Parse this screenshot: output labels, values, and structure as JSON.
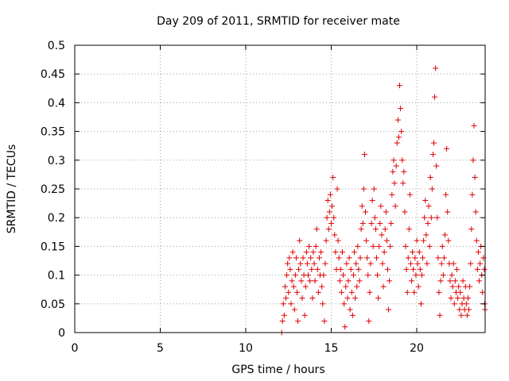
{
  "chart_data": {
    "type": "scatter",
    "title": "Day 209 of 2011, SRMTID for receiver mate",
    "xlabel": "GPS time / hours",
    "ylabel": "SRMTID / TECUs",
    "xlim": [
      0,
      24
    ],
    "ylim": [
      0,
      0.5
    ],
    "x_ticks": [
      0,
      5,
      10,
      15,
      20
    ],
    "x_tick_labels": [
      "0",
      "5",
      "10",
      "15",
      "20"
    ],
    "y_ticks": [
      0,
      0.05,
      0.1,
      0.15,
      0.2,
      0.25,
      0.3,
      0.35,
      0.4,
      0.45,
      0.5
    ],
    "y_tick_labels": [
      "0",
      "0.05",
      "0.1",
      "0.15",
      "0.2",
      "0.25",
      "0.3",
      "0.35",
      "0.4",
      "0.45",
      "0.5"
    ],
    "grid": true,
    "marker": "+",
    "marker_color": "#e00000",
    "series": [
      {
        "name": "SRMTID",
        "points": [
          [
            12.1,
            0.0
          ],
          [
            12.15,
            0.02
          ],
          [
            12.2,
            0.05
          ],
          [
            12.25,
            0.03
          ],
          [
            12.3,
            0.08
          ],
          [
            12.35,
            0.06
          ],
          [
            12.4,
            0.1
          ],
          [
            12.45,
            0.12
          ],
          [
            12.5,
            0.07
          ],
          [
            12.55,
            0.13
          ],
          [
            12.6,
            0.11
          ],
          [
            12.65,
            0.05
          ],
          [
            12.7,
            0.09
          ],
          [
            12.75,
            0.14
          ],
          [
            12.8,
            0.08
          ],
          [
            12.85,
            0.04
          ],
          [
            12.9,
            0.1
          ],
          [
            12.95,
            0.13
          ],
          [
            13.0,
            0.07
          ],
          [
            13.05,
            0.02
          ],
          [
            13.1,
            0.11
          ],
          [
            13.15,
            0.16
          ],
          [
            13.2,
            0.12
          ],
          [
            13.25,
            0.09
          ],
          [
            13.3,
            0.06
          ],
          [
            13.35,
            0.13
          ],
          [
            13.4,
            0.1
          ],
          [
            13.45,
            0.03
          ],
          [
            13.5,
            0.08
          ],
          [
            13.55,
            0.14
          ],
          [
            13.6,
            0.12
          ],
          [
            13.65,
            0.1
          ],
          [
            13.7,
            0.15
          ],
          [
            13.75,
            0.09
          ],
          [
            13.8,
            0.13
          ],
          [
            13.85,
            0.11
          ],
          [
            13.9,
            0.06
          ],
          [
            13.95,
            0.14
          ],
          [
            14.0,
            0.12
          ],
          [
            14.05,
            0.09
          ],
          [
            14.1,
            0.15
          ],
          [
            14.15,
            0.18
          ],
          [
            14.2,
            0.11
          ],
          [
            14.25,
            0.07
          ],
          [
            14.3,
            0.13
          ],
          [
            14.35,
            0.1
          ],
          [
            14.4,
            0.14
          ],
          [
            14.45,
            0.08
          ],
          [
            14.5,
            0.05
          ],
          [
            14.55,
            0.1
          ],
          [
            14.6,
            0.02
          ],
          [
            14.65,
            0.12
          ],
          [
            14.7,
            0.16
          ],
          [
            14.75,
            0.2
          ],
          [
            14.8,
            0.23
          ],
          [
            14.85,
            0.18
          ],
          [
            14.9,
            0.21
          ],
          [
            14.95,
            0.24
          ],
          [
            15.0,
            0.19
          ],
          [
            15.05,
            0.22
          ],
          [
            15.1,
            0.27
          ],
          [
            15.15,
            0.2
          ],
          [
            15.2,
            0.17
          ],
          [
            15.25,
            0.14
          ],
          [
            15.3,
            0.11
          ],
          [
            15.35,
            0.25
          ],
          [
            15.4,
            0.16
          ],
          [
            15.45,
            0.13
          ],
          [
            15.5,
            0.09
          ],
          [
            15.55,
            0.11
          ],
          [
            15.6,
            0.07
          ],
          [
            15.65,
            0.14
          ],
          [
            15.7,
            0.1
          ],
          [
            15.75,
            0.05
          ],
          [
            15.8,
            0.01
          ],
          [
            15.85,
            0.08
          ],
          [
            15.9,
            0.12
          ],
          [
            15.95,
            0.06
          ],
          [
            16.0,
            0.09
          ],
          [
            16.05,
            0.13
          ],
          [
            16.1,
            0.04
          ],
          [
            16.15,
            0.11
          ],
          [
            16.2,
            0.07
          ],
          [
            16.25,
            0.03
          ],
          [
            16.3,
            0.1
          ],
          [
            16.35,
            0.14
          ],
          [
            16.4,
            0.06
          ],
          [
            16.45,
            0.12
          ],
          [
            16.5,
            0.08
          ],
          [
            16.55,
            0.15
          ],
          [
            16.6,
            0.11
          ],
          [
            16.65,
            0.09
          ],
          [
            16.7,
            0.13
          ],
          [
            16.75,
            0.18
          ],
          [
            16.8,
            0.22
          ],
          [
            16.85,
            0.19
          ],
          [
            16.9,
            0.25
          ],
          [
            16.95,
            0.31
          ],
          [
            17.0,
            0.21
          ],
          [
            17.05,
            0.16
          ],
          [
            17.1,
            0.13
          ],
          [
            17.15,
            0.1
          ],
          [
            17.2,
            0.02
          ],
          [
            17.25,
            0.07
          ],
          [
            17.3,
            0.12
          ],
          [
            17.35,
            0.19
          ],
          [
            17.4,
            0.23
          ],
          [
            17.45,
            0.15
          ],
          [
            17.5,
            0.25
          ],
          [
            17.55,
            0.2
          ],
          [
            17.6,
            0.18
          ],
          [
            17.65,
            0.13
          ],
          [
            17.7,
            0.1
          ],
          [
            17.75,
            0.06
          ],
          [
            17.8,
            0.15
          ],
          [
            17.85,
            0.19
          ],
          [
            17.9,
            0.22
          ],
          [
            17.95,
            0.17
          ],
          [
            18.0,
            0.12
          ],
          [
            18.05,
            0.08
          ],
          [
            18.1,
            0.14
          ],
          [
            18.15,
            0.18
          ],
          [
            18.2,
            0.21
          ],
          [
            18.25,
            0.16
          ],
          [
            18.3,
            0.11
          ],
          [
            18.35,
            0.04
          ],
          [
            18.4,
            0.09
          ],
          [
            18.45,
            0.15
          ],
          [
            18.5,
            0.19
          ],
          [
            18.55,
            0.24
          ],
          [
            18.6,
            0.28
          ],
          [
            18.65,
            0.3
          ],
          [
            18.7,
            0.26
          ],
          [
            18.75,
            0.22
          ],
          [
            18.8,
            0.29
          ],
          [
            18.85,
            0.33
          ],
          [
            18.9,
            0.37
          ],
          [
            18.95,
            0.34
          ],
          [
            19.0,
            0.43
          ],
          [
            19.05,
            0.39
          ],
          [
            19.1,
            0.35
          ],
          [
            19.15,
            0.3
          ],
          [
            19.2,
            0.26
          ],
          [
            19.25,
            0.28
          ],
          [
            19.3,
            0.21
          ],
          [
            19.35,
            0.15
          ],
          [
            19.4,
            0.11
          ],
          [
            19.45,
            0.07
          ],
          [
            19.5,
            0.13
          ],
          [
            19.55,
            0.18
          ],
          [
            19.6,
            0.24
          ],
          [
            19.65,
            0.12
          ],
          [
            19.7,
            0.09
          ],
          [
            19.75,
            0.14
          ],
          [
            19.8,
            0.11
          ],
          [
            19.85,
            0.07
          ],
          [
            19.9,
            0.13
          ],
          [
            19.95,
            0.1
          ],
          [
            20.0,
            0.16
          ],
          [
            20.05,
            0.12
          ],
          [
            20.1,
            0.08
          ],
          [
            20.15,
            0.14
          ],
          [
            20.2,
            0.11
          ],
          [
            20.25,
            0.05
          ],
          [
            20.3,
            0.1
          ],
          [
            20.35,
            0.13
          ],
          [
            20.4,
            0.16
          ],
          [
            20.45,
            0.2
          ],
          [
            20.5,
            0.23
          ],
          [
            20.55,
            0.17
          ],
          [
            20.6,
            0.12
          ],
          [
            20.65,
            0.19
          ],
          [
            20.7,
            0.22
          ],
          [
            20.75,
            0.15
          ],
          [
            20.8,
            0.27
          ],
          [
            20.85,
            0.2
          ],
          [
            20.9,
            0.25
          ],
          [
            20.95,
            0.31
          ],
          [
            21.0,
            0.33
          ],
          [
            21.05,
            0.41
          ],
          [
            21.1,
            0.46
          ],
          [
            21.15,
            0.29
          ],
          [
            21.2,
            0.2
          ],
          [
            21.25,
            0.13
          ],
          [
            21.3,
            0.07
          ],
          [
            21.35,
            0.03
          ],
          [
            21.4,
            0.09
          ],
          [
            21.45,
            0.12
          ],
          [
            21.5,
            0.15
          ],
          [
            21.55,
            0.1
          ],
          [
            21.6,
            0.13
          ],
          [
            21.65,
            0.17
          ],
          [
            21.7,
            0.24
          ],
          [
            21.75,
            0.32
          ],
          [
            21.8,
            0.21
          ],
          [
            21.85,
            0.16
          ],
          [
            21.9,
            0.12
          ],
          [
            21.95,
            0.09
          ],
          [
            22.0,
            0.06
          ],
          [
            22.05,
            0.1
          ],
          [
            22.1,
            0.08
          ],
          [
            22.15,
            0.12
          ],
          [
            22.2,
            0.05
          ],
          [
            22.25,
            0.09
          ],
          [
            22.3,
            0.07
          ],
          [
            22.35,
            0.11
          ],
          [
            22.4,
            0.06
          ],
          [
            22.45,
            0.08
          ],
          [
            22.5,
            0.04
          ],
          [
            22.55,
            0.07
          ],
          [
            22.6,
            0.03
          ],
          [
            22.65,
            0.05
          ],
          [
            22.7,
            0.09
          ],
          [
            22.75,
            0.06
          ],
          [
            22.8,
            0.04
          ],
          [
            22.85,
            0.08
          ],
          [
            22.9,
            0.05
          ],
          [
            22.95,
            0.03
          ],
          [
            23.0,
            0.06
          ],
          [
            23.05,
            0.04
          ],
          [
            23.1,
            0.08
          ],
          [
            23.15,
            0.12
          ],
          [
            23.2,
            0.18
          ],
          [
            23.25,
            0.24
          ],
          [
            23.3,
            0.3
          ],
          [
            23.35,
            0.36
          ],
          [
            23.4,
            0.27
          ],
          [
            23.45,
            0.21
          ],
          [
            23.5,
            0.16
          ],
          [
            23.55,
            0.11
          ],
          [
            23.6,
            0.14
          ],
          [
            23.65,
            0.09
          ],
          [
            23.7,
            0.12
          ],
          [
            23.75,
            0.15
          ],
          [
            23.8,
            0.1
          ],
          [
            23.85,
            0.07
          ],
          [
            23.9,
            0.13
          ],
          [
            23.95,
            0.11
          ],
          [
            23.97,
            0.05
          ],
          [
            23.99,
            0.04
          ]
        ]
      }
    ]
  }
}
